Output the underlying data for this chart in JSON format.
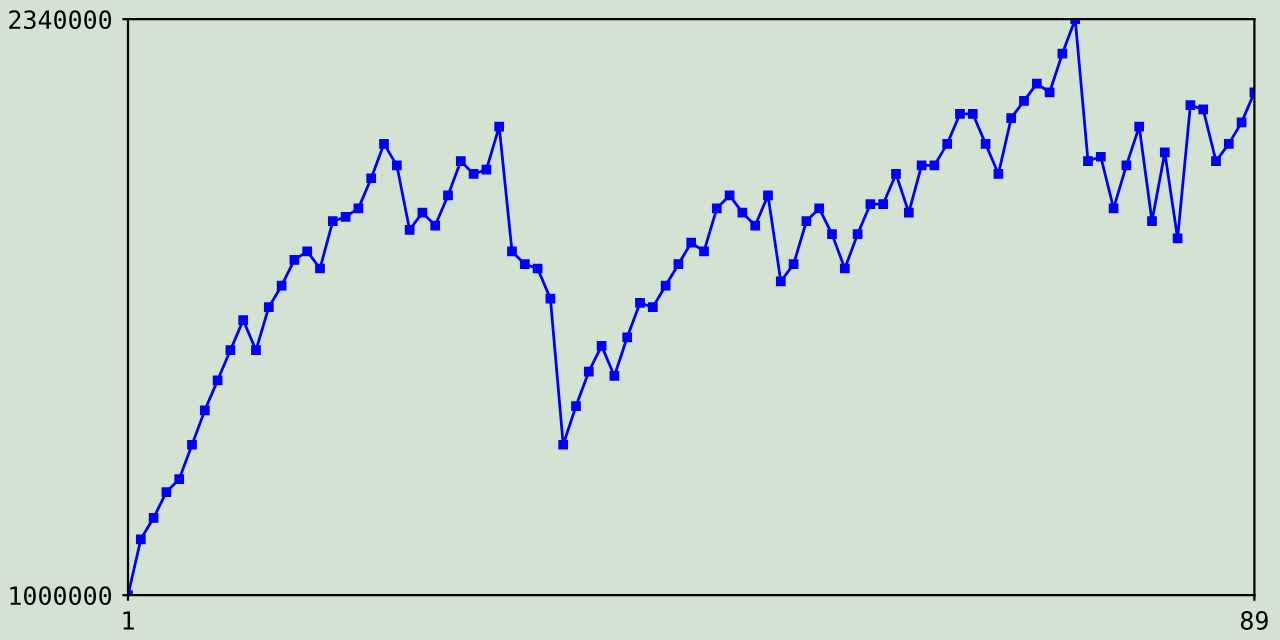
{
  "chart_data": {
    "type": "line",
    "x": [
      1,
      2,
      3,
      4,
      5,
      6,
      7,
      8,
      9,
      10,
      11,
      12,
      13,
      14,
      15,
      16,
      17,
      18,
      19,
      20,
      21,
      22,
      23,
      24,
      25,
      26,
      27,
      28,
      29,
      30,
      31,
      32,
      33,
      34,
      35,
      36,
      37,
      38,
      39,
      40,
      41,
      42,
      43,
      44,
      45,
      46,
      47,
      48,
      49,
      50,
      51,
      52,
      53,
      54,
      55,
      56,
      57,
      58,
      59,
      60,
      61,
      62,
      63,
      64,
      65,
      66,
      67,
      68,
      69,
      70,
      71,
      72,
      73,
      74,
      75,
      76,
      77,
      78,
      79,
      80,
      81,
      82,
      83,
      84,
      85,
      86,
      87,
      88,
      89
    ],
    "series": [
      {
        "color": "#0000ff",
        "values": [
          1000000,
          1130000,
          1180000,
          1240000,
          1270000,
          1350000,
          1430000,
          1500000,
          1570000,
          1640000,
          1570000,
          1670000,
          1720000,
          1780000,
          1800000,
          1760000,
          1870000,
          1880000,
          1900000,
          1970000,
          2050000,
          2000000,
          1850000,
          1890000,
          1860000,
          1930000,
          2010000,
          1980000,
          1990000,
          2090000,
          1800000,
          1770000,
          1760000,
          1690000,
          1350000,
          1440000,
          1520000,
          1580000,
          1510000,
          1600000,
          1680000,
          1670000,
          1720000,
          1770000,
          1820000,
          1800000,
          1900000,
          1930000,
          1890000,
          1860000,
          1930000,
          1730000,
          1770000,
          1870000,
          1900000,
          1840000,
          1760000,
          1840000,
          1910000,
          1910000,
          1980000,
          1890000,
          2000000,
          2000000,
          2050000,
          2120000,
          2120000,
          2050000,
          1980000,
          2110000,
          2150000,
          2190000,
          2170000,
          2260000,
          2340000,
          2010000,
          2020000,
          1900000,
          2000000,
          2090000,
          1870000,
          2030000,
          1830000,
          2140000,
          2130000,
          2010000,
          2050000,
          2100000,
          2170000
        ]
      }
    ],
    "xlim": [
      1,
      89
    ],
    "ylim": [
      1000000,
      2340000
    ],
    "xticks": [
      1,
      89
    ],
    "yticks": [
      1000000,
      2340000
    ],
    "marker": "square",
    "line_style": "solid"
  }
}
